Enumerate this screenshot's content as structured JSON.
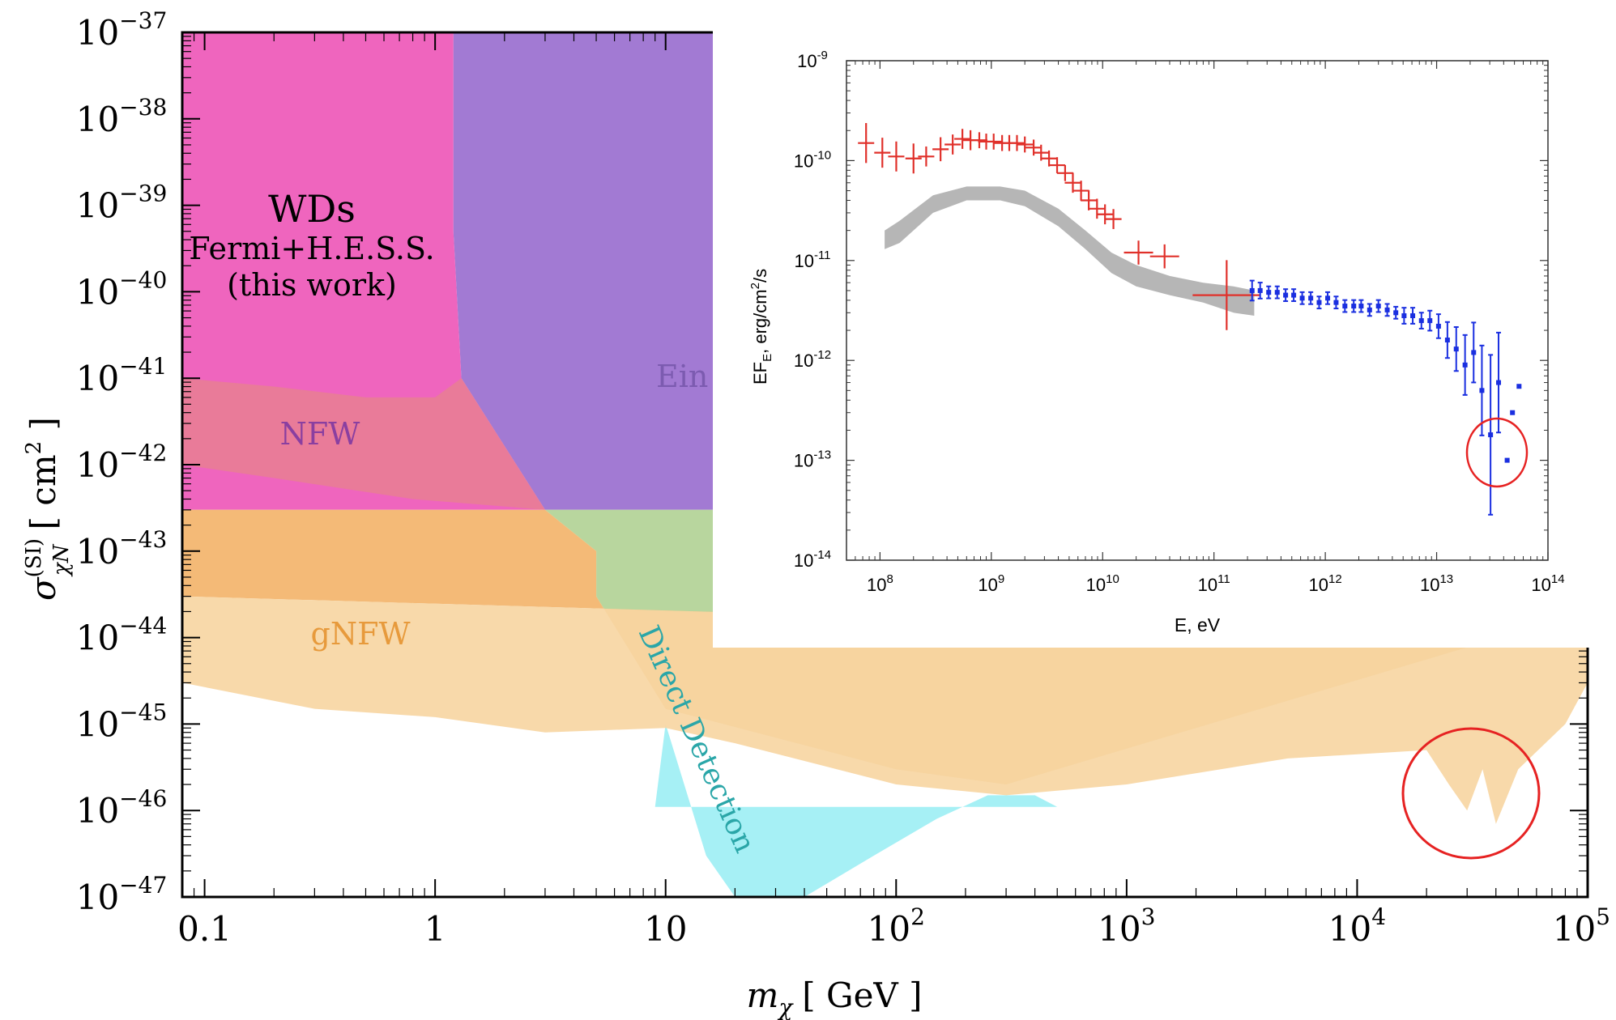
{
  "main_chart": {
    "type": "area",
    "xlabel": "m",
    "xlabel_sub": "χ",
    "xlabel_unit": "[ GeV ]",
    "ylabel": "σ",
    "ylabel_sup": "(SI)",
    "ylabel_sub": "χN",
    "ylabel_unit": "[ cm",
    "ylabel_unit_sup": "2",
    "ylabel_unit_end": " ]",
    "x_scale": "log",
    "y_scale": "log",
    "xlim": [
      0.08,
      100000
    ],
    "ylim": [
      1e-47,
      1e-37
    ],
    "x_ticks": [
      {
        "value": 0.1,
        "label": "0.1",
        "sup": ""
      },
      {
        "value": 1,
        "label": "1",
        "sup": ""
      },
      {
        "value": 10,
        "label": "10",
        "sup": ""
      },
      {
        "value": 100,
        "label": "10",
        "sup": "2"
      },
      {
        "value": 1000,
        "label": "10",
        "sup": "3"
      },
      {
        "value": 10000,
        "label": "10",
        "sup": "4"
      },
      {
        "value": 100000,
        "label": "10",
        "sup": "5"
      }
    ],
    "y_ticks": [
      {
        "value": 1e-37,
        "base": "10",
        "exp": "−37"
      },
      {
        "value": 1e-38,
        "base": "10",
        "exp": "−38"
      },
      {
        "value": 1e-39,
        "base": "10",
        "exp": "−39"
      },
      {
        "value": 1e-40,
        "base": "10",
        "exp": "−40"
      },
      {
        "value": 1e-41,
        "base": "10",
        "exp": "−41"
      },
      {
        "value": 1e-42,
        "base": "10",
        "exp": "−42"
      },
      {
        "value": 1e-43,
        "base": "10",
        "exp": "−43"
      },
      {
        "value": 1e-44,
        "base": "10",
        "exp": "−44"
      },
      {
        "value": 1e-45,
        "base": "10",
        "exp": "−45"
      },
      {
        "value": 1e-46,
        "base": "10",
        "exp": "−46"
      },
      {
        "value": 1e-47,
        "base": "10",
        "exp": "−47"
      }
    ],
    "regions": [
      {
        "name": "Direct Detection",
        "color": "#a6f0f5",
        "boundary": [
          [
            10,
            1e-45
          ],
          [
            15,
            3e-47
          ],
          [
            20,
            1e-47
          ],
          [
            40,
            1e-47
          ],
          [
            80,
            3e-47
          ],
          [
            150,
            8e-47
          ],
          [
            250,
            1.5e-46
          ],
          [
            400,
            1.5e-46
          ],
          [
            500,
            1.1e-46
          ],
          [
            9,
            1.1e-46
          ]
        ]
      },
      {
        "name": "Ein",
        "color": "#9a6fcf",
        "boundary": [
          [
            1.2,
            1e-37
          ],
          [
            100000,
            1e-37
          ],
          [
            100000,
            3e-43
          ],
          [
            3,
            3e-43
          ],
          [
            1.3,
            1e-41
          ],
          [
            1.2,
            5e-40
          ]
        ]
      },
      {
        "name": "WDs Fermi+H.E.S.S. (this work)",
        "color": "#ee58b8",
        "boundary": [
          [
            0.08,
            1e-37
          ],
          [
            1.2,
            1e-37
          ],
          [
            1.2,
            5e-40
          ],
          [
            1.3,
            1e-41
          ],
          [
            3,
            3e-43
          ],
          [
            0.08,
            3e-43
          ]
        ]
      },
      {
        "name": "NFW",
        "color": "#e87d96",
        "boundary": [
          [
            0.08,
            1e-41
          ],
          [
            0.2,
            8e-42
          ],
          [
            0.5,
            6e-42
          ],
          [
            1,
            6e-42
          ],
          [
            1.3,
            1e-41
          ],
          [
            3,
            3e-43
          ],
          [
            0.8,
            4e-43
          ],
          [
            0.2,
            7e-43
          ],
          [
            0.08,
            1e-42
          ]
        ]
      },
      {
        "name": "Direct Detection green",
        "color": "#b2d396",
        "boundary": [
          [
            3,
            3e-43
          ],
          [
            100000,
            3e-43
          ],
          [
            100000,
            2e-44
          ],
          [
            300,
            2e-46
          ],
          [
            100,
            3e-46
          ],
          [
            10,
            1.5e-45
          ],
          [
            5,
            3e-44
          ],
          [
            5,
            1e-43
          ],
          [
            3,
            3e-43
          ]
        ]
      },
      {
        "name": "gNFW",
        "color": "#f3b46b",
        "boundary": [
          [
            0.08,
            3e-43
          ],
          [
            3,
            3e-43
          ],
          [
            5,
            1e-43
          ],
          [
            5,
            3e-44
          ],
          [
            10,
            1.5e-45
          ],
          [
            100,
            3e-46
          ],
          [
            300,
            2e-46
          ],
          [
            100000,
            2e-44
          ],
          [
            100000,
            1e-44
          ],
          [
            0.08,
            3e-44
          ]
        ]
      },
      {
        "name": "gNFW light",
        "color": "#f7d6a3",
        "boundary": [
          [
            0.08,
            3e-44
          ],
          [
            100000,
            1e-44
          ],
          [
            100000,
            3e-45
          ],
          [
            80000,
            1e-45
          ],
          [
            50000,
            3e-46
          ],
          [
            40000,
            7e-47
          ],
          [
            35000,
            3e-46
          ],
          [
            30000,
            1e-46
          ],
          [
            25000,
            2e-46
          ],
          [
            20000,
            5e-46
          ],
          [
            5000,
            4e-46
          ],
          [
            1000,
            2e-46
          ],
          [
            300,
            1.5e-46
          ],
          [
            100,
            2e-46
          ],
          [
            20,
            6e-46
          ],
          [
            10,
            9e-46
          ],
          [
            3,
            8e-46
          ],
          [
            1,
            1.2e-45
          ],
          [
            0.3,
            1.5e-45
          ],
          [
            0.08,
            3e-45
          ]
        ]
      }
    ],
    "labels": [
      {
        "text": "WDs",
        "color": "#000000"
      },
      {
        "text": "Fermi+H.E.S.S.",
        "color": "#000000"
      },
      {
        "text": "(this work)",
        "color": "#000000"
      },
      {
        "text": "NFW",
        "color": "#8a3fa0"
      },
      {
        "text": "gNFW",
        "color": "#e79a3c"
      },
      {
        "text": "Ein",
        "color": "#7c5bb0"
      },
      {
        "text": "Direct Detection",
        "color": "#2aa6a8"
      }
    ],
    "annotation_circle_color": "#e62222"
  },
  "inset_chart": {
    "type": "scatter",
    "xlabel": "E, eV",
    "ylabel": "EF",
    "ylabel_sub": "E",
    "ylabel_unit": ", erg/cm",
    "ylabel_unit_sup": "2",
    "ylabel_unit_end": "/s",
    "x_scale": "log",
    "y_scale": "log",
    "xlim": [
      50000000.0,
      100000000000000.0
    ],
    "ylim": [
      1e-14,
      1e-09
    ],
    "x_ticks": [
      {
        "value": 100000000.0,
        "base": "10",
        "exp": "8"
      },
      {
        "value": 1000000000.0,
        "base": "10",
        "exp": "9"
      },
      {
        "value": 10000000000.0,
        "base": "10",
        "exp": "10"
      },
      {
        "value": 100000000000.0,
        "base": "10",
        "exp": "11"
      },
      {
        "value": 1000000000000.0,
        "base": "10",
        "exp": "12"
      },
      {
        "value": 10000000000000.0,
        "base": "10",
        "exp": "13"
      },
      {
        "value": 100000000000000.0,
        "base": "10",
        "exp": "14"
      }
    ],
    "y_ticks": [
      {
        "value": 1e-09,
        "base": "10",
        "exp": "-9"
      },
      {
        "value": 1e-10,
        "base": "10",
        "exp": "-10"
      },
      {
        "value": 1e-11,
        "base": "10",
        "exp": "-11"
      },
      {
        "value": 1e-12,
        "base": "10",
        "exp": "-12"
      },
      {
        "value": 1e-13,
        "base": "10",
        "exp": "-13"
      },
      {
        "value": 1e-14,
        "base": "10",
        "exp": "-14"
      }
    ],
    "band": {
      "color": "#a9a9a9",
      "upper": [
        [
          110000000.0,
          2e-11
        ],
        [
          150000000.0,
          2.5e-11
        ],
        [
          300000000.0,
          4.5e-11
        ],
        [
          600000000.0,
          5.5e-11
        ],
        [
          1200000000.0,
          5.5e-11
        ],
        [
          2000000000.0,
          5e-11
        ],
        [
          4000000000.0,
          3.3e-11
        ],
        [
          7000000000.0,
          2e-11
        ],
        [
          12000000000.0,
          1.2e-11
        ],
        [
          20000000000.0,
          9e-12
        ],
        [
          40000000000.0,
          7e-12
        ],
        [
          80000000000.0,
          6e-12
        ],
        [
          150000000000.0,
          5.5e-12
        ],
        [
          230000000000.0,
          5e-12
        ]
      ],
      "lower": [
        [
          110000000.0,
          1.3e-11
        ],
        [
          150000000.0,
          1.5e-11
        ],
        [
          300000000.0,
          3e-11
        ],
        [
          600000000.0,
          4e-11
        ],
        [
          1200000000.0,
          4e-11
        ],
        [
          2000000000.0,
          3.5e-11
        ],
        [
          4000000000.0,
          2.2e-11
        ],
        [
          7000000000.0,
          1.3e-11
        ],
        [
          12000000000.0,
          7.5e-12
        ],
        [
          20000000000.0,
          5.5e-12
        ],
        [
          40000000000.0,
          4.5e-12
        ],
        [
          80000000000.0,
          3.8e-12
        ],
        [
          150000000000.0,
          3e-12
        ],
        [
          230000000000.0,
          2.8e-12
        ]
      ]
    },
    "series": [
      {
        "color": "#e0302a",
        "marker": "cross",
        "points": [
          [
            75000000.0,
            1.5e-10,
            1.5e-10,
            0.2
          ],
          [
            105000000.0,
            1.2e-10,
            1.2e-10,
            0.15
          ],
          [
            140000000.0,
            1.1e-10,
            1.1e-10,
            0.15
          ],
          [
            200000000.0,
            1.05e-10,
            1.05e-10,
            0.15
          ],
          [
            260000000.0,
            1.1e-10,
            1.1e-10,
            0.1
          ],
          [
            350000000.0,
            1.3e-10,
            1.3e-10,
            0.12
          ],
          [
            450000000.0,
            1.45e-10,
            1.45e-10,
            0.1
          ],
          [
            550000000.0,
            1.65e-10,
            1.65e-10,
            0.1
          ],
          [
            650000000.0,
            1.6e-10,
            1.6e-10,
            0.1
          ],
          [
            780000000.0,
            1.6e-10,
            1.6e-10,
            0.08
          ],
          [
            900000000.0,
            1.55e-10,
            1.55e-10,
            0.08
          ],
          [
            1050000000.0,
            1.55e-10,
            1.55e-10,
            0.08
          ],
          [
            1250000000.0,
            1.5e-10,
            1.5e-10,
            0.08
          ],
          [
            1450000000.0,
            1.5e-10,
            1.5e-10,
            0.08
          ],
          [
            1700000000.0,
            1.5e-10,
            1.5e-10,
            0.08
          ],
          [
            2000000000.0,
            1.45e-10,
            1.45e-10,
            0.08
          ],
          [
            2400000000.0,
            1.35e-10,
            1.35e-10,
            0.08
          ],
          [
            2800000000.0,
            1.2e-10,
            1.2e-10,
            0.08
          ],
          [
            3300000000.0,
            1.05e-10,
            1.05e-10,
            0.08
          ],
          [
            3900000000.0,
            9e-11,
            9e-11,
            0.08
          ],
          [
            4600000000.0,
            7.5e-11,
            7.5e-11,
            0.08
          ],
          [
            5400000000.0,
            6e-11,
            6e-11,
            0.1
          ],
          [
            6400000000.0,
            5e-11,
            5e-11,
            0.1
          ],
          [
            7500000000.0,
            4e-11,
            4e-11,
            0.1
          ],
          [
            8900000000.0,
            3.3e-11,
            3.3e-11,
            0.1
          ],
          [
            10500000000.0,
            2.9e-11,
            2.9e-11,
            0.1
          ],
          [
            12500000000.0,
            2.6e-11,
            2.6e-11,
            0.1
          ],
          [
            21000000000.0,
            1.2e-11,
            1.2e-11,
            0.12
          ],
          [
            36000000000.0,
            1.1e-11,
            1.1e-11,
            0.12
          ],
          [
            130000000000.0,
            4.5e-12,
            4.5e-12,
            0.35
          ]
        ]
      },
      {
        "color": "#1a2fe0",
        "marker": "dot",
        "points": [
          [
            220000000000.0,
            5e-12,
            5e-12,
            0.1
          ],
          [
            260000000000.0,
            5e-12,
            5e-12,
            0.08
          ],
          [
            310000000000.0,
            4.8e-12,
            4.8e-12,
            0.06
          ],
          [
            370000000000.0,
            4.8e-12,
            4.8e-12,
            0.06
          ],
          [
            440000000000.0,
            4.5e-12,
            4.5e-12,
            0.06
          ],
          [
            520000000000.0,
            4.5e-12,
            4.5e-12,
            0.06
          ],
          [
            620000000000.0,
            4.2e-12,
            4.2e-12,
            0.06
          ],
          [
            740000000000.0,
            4.2e-12,
            4.2e-12,
            0.06
          ],
          [
            880000000000.0,
            3.8e-12,
            3.8e-12,
            0.06
          ],
          [
            1050000000000.0,
            4.2e-12,
            4.2e-12,
            0.06
          ],
          [
            1250000000000.0,
            3.8e-12,
            3.8e-12,
            0.06
          ],
          [
            1500000000000.0,
            3.5e-12,
            3.5e-12,
            0.06
          ],
          [
            1800000000000.0,
            3.5e-12,
            3.5e-12,
            0.06
          ],
          [
            2100000000000.0,
            3.5e-12,
            3.5e-12,
            0.06
          ],
          [
            2500000000000.0,
            3.2e-12,
            3.2e-12,
            0.06
          ],
          [
            3000000000000.0,
            3.5e-12,
            3.5e-12,
            0.06
          ],
          [
            3600000000000.0,
            3.2e-12,
            3.2e-12,
            0.06
          ],
          [
            4300000000000.0,
            3e-12,
            3e-12,
            0.06
          ],
          [
            5100000000000.0,
            2.8e-12,
            2.8e-12,
            0.08
          ],
          [
            6100000000000.0,
            2.8e-12,
            2.8e-12,
            0.08
          ],
          [
            7300000000000.0,
            2.5e-12,
            2.5e-12,
            0.08
          ],
          [
            8700000000000.0,
            2.5e-12,
            2.5e-12,
            0.1
          ],
          [
            10400000000000.0,
            2.2e-12,
            2.2e-12,
            0.12
          ],
          [
            12500000000000.0,
            1.6e-12,
            1.6e-12,
            0.18
          ],
          [
            15000000000000.0,
            1.3e-12,
            1.3e-12,
            0.22
          ],
          [
            18000000000000.0,
            9e-13,
            9e-13,
            0.3
          ],
          [
            21500000000000.0,
            1.2e-12,
            1.2e-12,
            0.3
          ],
          [
            25500000000000.0,
            5e-13,
            5e-13,
            0.45
          ],
          [
            30500000000000.0,
            1.8e-13,
            1.8e-13,
            0.8
          ],
          [
            36000000000000.0,
            6e-13,
            6e-13,
            0.5
          ],
          [
            43000000000000.0,
            1e-13,
            1e-13,
            0
          ],
          [
            48000000000000.0,
            3e-13,
            3e-13,
            0
          ],
          [
            55000000000000.0,
            5.5e-13,
            5.5e-13,
            0
          ]
        ]
      }
    ],
    "annotation_circle_color": "#e62222"
  }
}
